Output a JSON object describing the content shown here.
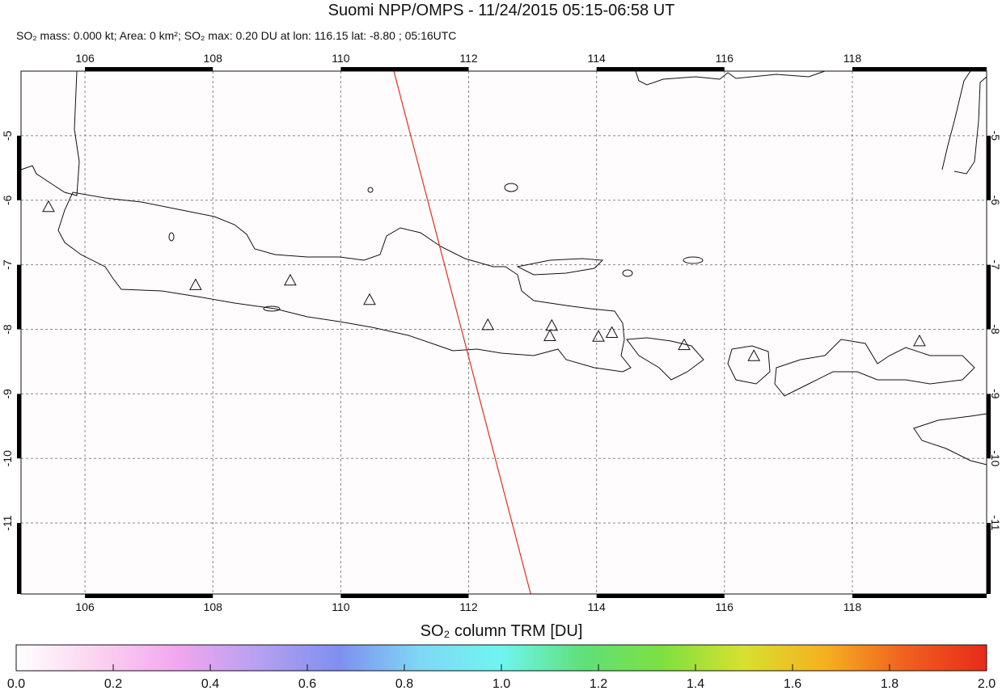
{
  "map": {
    "type": "map",
    "title": "Suomi NPP/OMPS - 11/24/2015 05:15-06:58 UT",
    "subtitle": "SO₂ mass: 0.000 kt; Area: 0 km²; SO₂ max: 0.20 DU at lon: 116.15 lat: -8.80 ; 05:16UTC",
    "xlim": [
      105,
      120.1
    ],
    "ylim": [
      -4,
      -12.1
    ],
    "xticks": [
      106,
      108,
      110,
      112,
      114,
      116,
      118
    ],
    "yticks": [
      -5,
      -6,
      -7,
      -8,
      -9,
      -10,
      -11
    ],
    "grid": true,
    "orbit_track": {
      "color": "#e0301e",
      "lon": [
        110.83,
        112.97
      ],
      "lat": [
        -4.0,
        -12.1
      ]
    },
    "volcanoes": {
      "lon": [
        105.43,
        107.73,
        109.21,
        110.45,
        112.3,
        113.3,
        113.27,
        114.03,
        114.24,
        115.37,
        116.46,
        119.05
      ],
      "lat": [
        -6.1,
        -7.31,
        -7.24,
        -7.54,
        -7.93,
        -7.94,
        -8.1,
        -8.11,
        -8.05,
        -8.24,
        -8.41,
        -8.18
      ]
    },
    "colorbar": {
      "label": "SO₂ column TRM [DU]",
      "lim": [
        0,
        2
      ],
      "colors": [
        "#ffffff",
        "#fbd3f0",
        "#f2a6ef",
        "#b6a0f0",
        "#7f8ff0",
        "#7fd8f5",
        "#6ff5ef",
        "#5fe07a",
        "#7ee040",
        "#d8e030",
        "#f5b020",
        "#f06020",
        "#e82a18"
      ],
      "ticks": [
        {
          "value": 0,
          "label": "0.0"
        },
        0.2,
        0.4,
        0.6,
        0.8,
        {
          "value": 1,
          "label": "1.0"
        },
        1.2,
        1.4,
        1.6,
        1.8,
        {
          "value": 2,
          "label": "2.0"
        }
      ]
    }
  }
}
